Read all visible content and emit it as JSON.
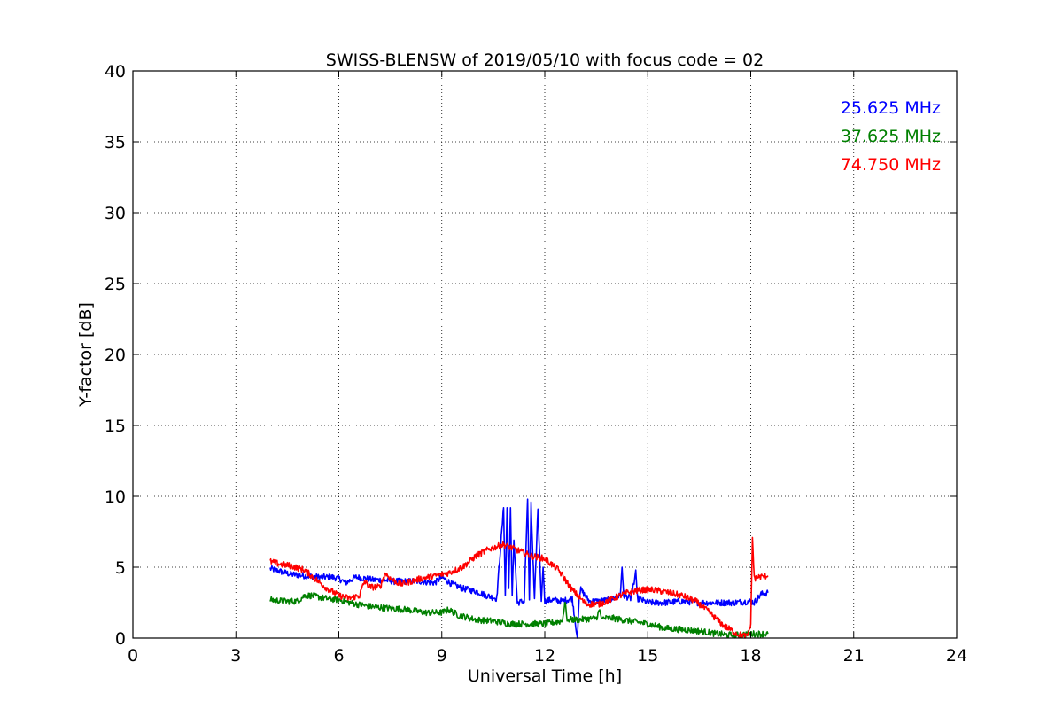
{
  "chart_data": {
    "type": "line",
    "title": "SWISS-BLENSW of 2019/05/10 with focus code = 02",
    "xlabel": "Universal Time [h]",
    "ylabel": "Y-factor [dB]",
    "xlim": [
      0,
      24
    ],
    "ylim": [
      0,
      40
    ],
    "xticks": [
      0,
      3,
      6,
      9,
      12,
      15,
      18,
      21,
      24
    ],
    "yticks": [
      0,
      5,
      10,
      15,
      20,
      25,
      30,
      35,
      40
    ],
    "grid": true,
    "legend_position": "top-right",
    "series": [
      {
        "name": "25.625 MHz",
        "color": "#0000ff",
        "x": [
          4.0,
          4.3,
          4.6,
          5.0,
          5.4,
          5.8,
          6.0,
          6.2,
          6.5,
          6.8,
          7.0,
          7.3,
          7.6,
          8.0,
          8.4,
          8.8,
          9.0,
          9.3,
          9.6,
          10.0,
          10.3,
          10.6,
          10.8,
          10.85,
          10.9,
          10.95,
          11.0,
          11.05,
          11.1,
          11.2,
          11.4,
          11.5,
          11.55,
          11.6,
          11.7,
          11.8,
          11.9,
          11.95,
          12.0,
          12.2,
          12.5,
          12.8,
          12.95,
          13.0,
          13.05,
          13.3,
          13.6,
          13.9,
          14.2,
          14.25,
          14.3,
          14.5,
          14.6,
          14.65,
          14.7,
          15.0,
          15.5,
          16.0,
          16.5,
          17.0,
          17.5,
          18.0,
          18.1,
          18.3,
          18.5
        ],
        "y": [
          4.9,
          4.7,
          4.5,
          4.4,
          4.3,
          4.3,
          4.2,
          3.9,
          4.3,
          4.2,
          4.1,
          4.1,
          4.0,
          4.0,
          4.0,
          3.9,
          4.3,
          3.8,
          3.5,
          3.3,
          3.0,
          2.8,
          9.2,
          3.0,
          9.2,
          3.5,
          9.2,
          3.0,
          7.0,
          2.5,
          2.6,
          9.8,
          2.7,
          9.4,
          2.6,
          9.2,
          2.6,
          5.0,
          2.6,
          2.7,
          2.6,
          2.8,
          0.0,
          2.8,
          3.4,
          2.6,
          2.6,
          2.7,
          3.0,
          5.0,
          3.0,
          2.8,
          3.8,
          4.8,
          2.8,
          2.5,
          2.5,
          2.6,
          2.5,
          2.5,
          2.5,
          2.6,
          2.5,
          3.1,
          3.2
        ]
      },
      {
        "name": "37.625 MHz",
        "color": "#008000",
        "x": [
          4.0,
          4.4,
          4.8,
          5.0,
          5.2,
          5.6,
          6.0,
          6.5,
          7.0,
          7.5,
          8.0,
          8.5,
          9.0,
          9.2,
          9.5,
          10.0,
          10.5,
          11.0,
          11.5,
          12.0,
          12.5,
          12.6,
          12.65,
          12.7,
          13.0,
          13.5,
          13.6,
          13.65,
          13.7,
          14.0,
          14.5,
          15.0,
          15.5,
          16.0,
          16.5,
          17.0,
          17.5,
          18.0,
          18.1,
          18.5
        ],
        "y": [
          2.7,
          2.6,
          2.6,
          3.0,
          3.0,
          2.8,
          2.7,
          2.4,
          2.2,
          2.1,
          2.0,
          1.8,
          1.8,
          2.0,
          1.6,
          1.3,
          1.2,
          1.0,
          1.0,
          1.0,
          1.2,
          2.5,
          1.2,
          1.3,
          1.3,
          1.4,
          2.0,
          1.4,
          1.4,
          1.4,
          1.2,
          1.0,
          0.7,
          0.6,
          0.5,
          0.3,
          0.2,
          0.3,
          0.3,
          0.3
        ]
      },
      {
        "name": "74.750 MHz",
        "color": "#ff0000",
        "x": [
          4.0,
          4.3,
          4.6,
          5.0,
          5.3,
          5.6,
          6.0,
          6.3,
          6.6,
          6.75,
          6.9,
          7.2,
          7.35,
          7.5,
          7.8,
          8.1,
          8.4,
          8.8,
          9.2,
          9.6,
          10.0,
          10.4,
          10.8,
          11.2,
          11.6,
          12.0,
          12.4,
          12.8,
          13.2,
          13.6,
          14.0,
          14.4,
          14.8,
          15.2,
          15.6,
          16.0,
          16.4,
          16.8,
          17.2,
          17.6,
          17.9,
          18.0,
          18.05,
          18.1,
          18.2,
          18.5
        ],
        "y": [
          5.4,
          5.2,
          5.1,
          4.8,
          4.2,
          3.6,
          3.0,
          2.8,
          3.0,
          4.0,
          3.6,
          3.6,
          4.6,
          4.2,
          3.8,
          4.0,
          4.2,
          4.4,
          4.6,
          5.0,
          5.8,
          6.3,
          6.6,
          6.2,
          5.8,
          5.6,
          4.8,
          3.4,
          2.4,
          2.4,
          2.8,
          3.2,
          3.4,
          3.4,
          3.2,
          3.0,
          2.6,
          1.8,
          0.9,
          0.3,
          0.1,
          1.0,
          7.1,
          4.2,
          4.3,
          4.4
        ]
      }
    ]
  }
}
